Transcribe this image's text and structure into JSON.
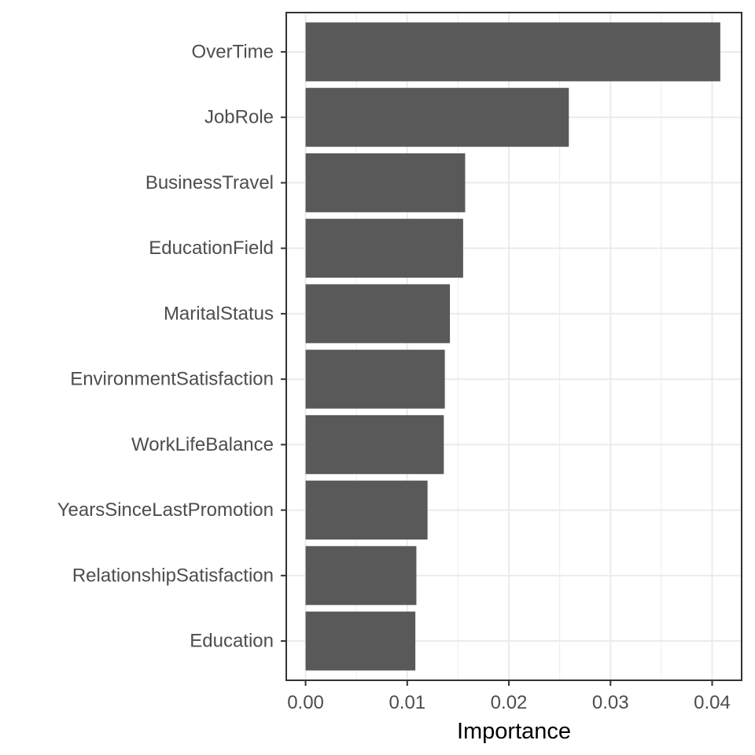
{
  "chart_data": {
    "type": "bar",
    "orientation": "horizontal",
    "categories": [
      "OverTime",
      "JobRole",
      "BusinessTravel",
      "EducationField",
      "MaritalStatus",
      "EnvironmentSatisfaction",
      "WorkLifeBalance",
      "YearsSinceLastPromotion",
      "RelationshipSatisfaction",
      "Education"
    ],
    "values": [
      0.0408,
      0.0259,
      0.0157,
      0.0155,
      0.0142,
      0.0137,
      0.0136,
      0.012,
      0.0109,
      0.0108
    ],
    "title": "",
    "xlabel": "Importance",
    "ylabel": "",
    "xlim": [
      -0.0019,
      0.0429
    ],
    "xticks": [
      0.0,
      0.01,
      0.02,
      0.03,
      0.04
    ],
    "xtick_labels": [
      "0.00",
      "0.01",
      "0.02",
      "0.03",
      "0.04"
    ],
    "grid": true,
    "bar_color": "#595959",
    "grid_color": "#ebebeb",
    "panel_border_color": "#333333"
  }
}
